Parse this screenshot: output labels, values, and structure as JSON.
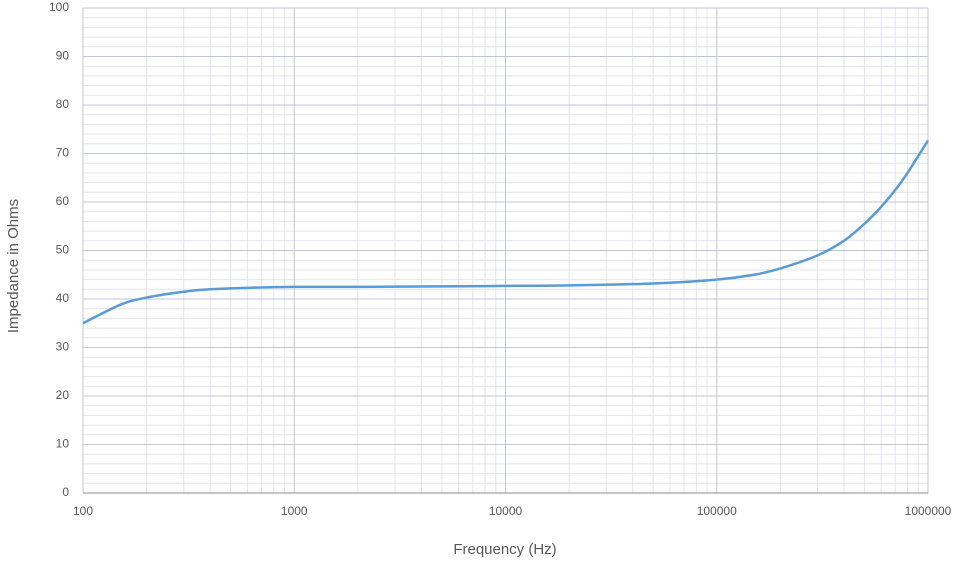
{
  "chart_data": {
    "type": "line",
    "x_label": "Frequency (Hz)",
    "y_label": "Impedance in Ohms",
    "xscale": "log",
    "xlim": [
      100,
      1000000
    ],
    "xticks": [
      100,
      1000,
      10000,
      100000,
      1000000
    ],
    "ylim": [
      0,
      100
    ],
    "yticks": [
      0,
      10,
      20,
      30,
      40,
      50,
      60,
      70,
      80,
      90,
      100
    ],
    "grid": true,
    "minor_grid": true,
    "series": [
      {
        "color": "#5b9bd5",
        "x": [
          100,
          150,
          200,
          300,
          400,
          600,
          1000,
          2000,
          5000,
          10000,
          20000,
          50000,
          100000,
          150000,
          200000,
          300000,
          400000,
          500000,
          600000,
          700000,
          800000,
          1000000
        ],
        "values": [
          35,
          38.8,
          40.3,
          41.5,
          42,
          42.3,
          42.5,
          42.5,
          42.6,
          42.7,
          42.8,
          43.2,
          44,
          45,
          46.3,
          49,
          52,
          55.5,
          59,
          62.5,
          66,
          72.7
        ]
      }
    ]
  }
}
